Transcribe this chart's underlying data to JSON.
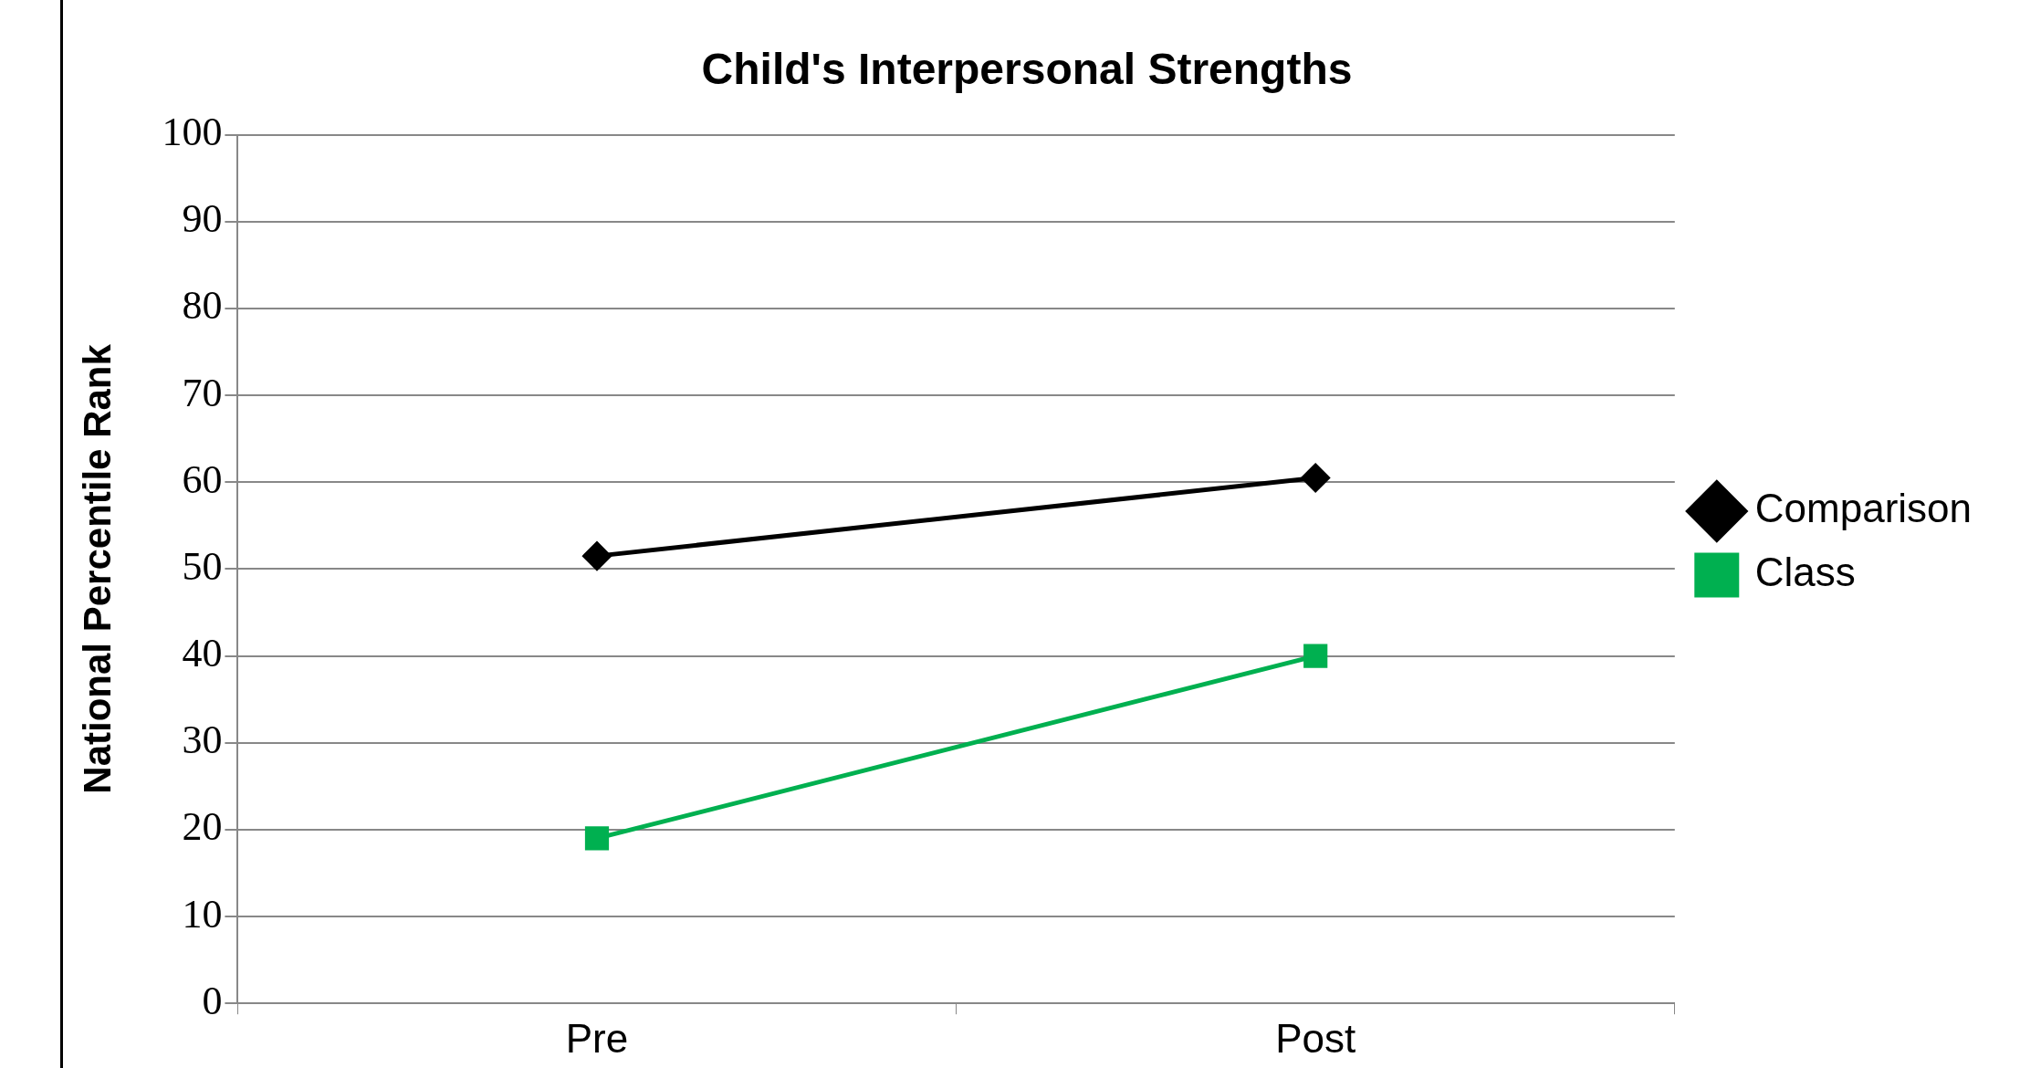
{
  "chart_data": {
    "type": "line",
    "title": "Child's Interpersonal Strengths",
    "ylabel": "National Percentile Rank",
    "categories": [
      "Pre",
      "Post"
    ],
    "series": [
      {
        "name": "Comparison",
        "color": "#000000",
        "values": [
          51.5,
          60.5
        ],
        "marker": "diamond"
      },
      {
        "name": "Class",
        "color": "#00b050",
        "values": [
          19,
          40
        ],
        "marker": "square"
      }
    ],
    "ylim": [
      0,
      100
    ],
    "yticks": [
      0,
      10,
      20,
      30,
      40,
      50,
      60,
      70,
      80,
      90,
      100
    ],
    "grid": "y",
    "legend": "right",
    "line_style": "solid"
  }
}
